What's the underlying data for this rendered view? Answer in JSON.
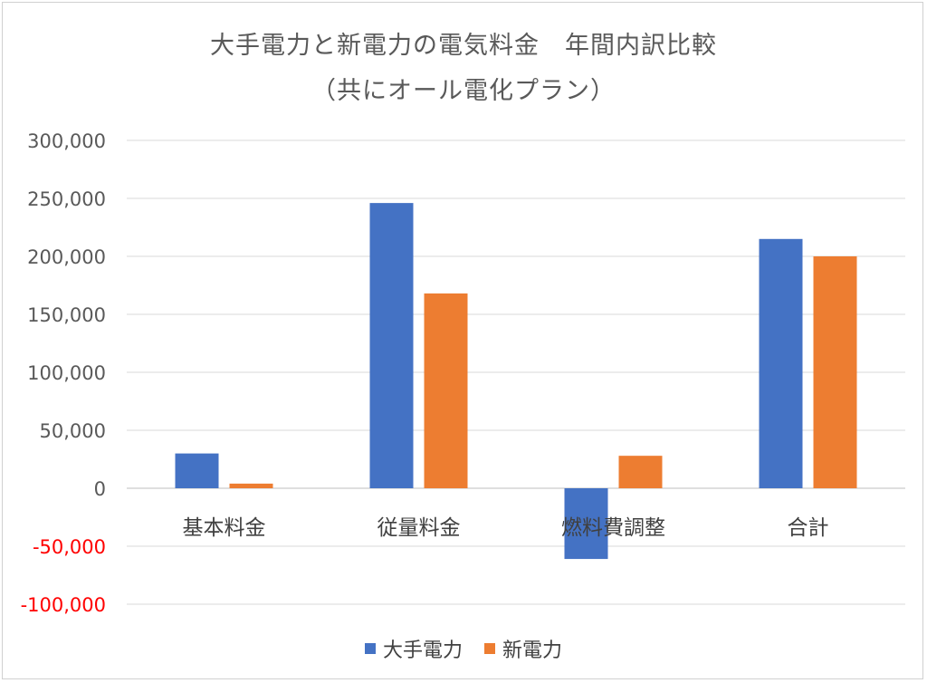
{
  "chart_data": {
    "type": "bar",
    "title": "大手電力と新電力の電気料金　年間内訳比較",
    "subtitle": "（共にオール電化プラン）",
    "categories": [
      "基本料金",
      "従量料金",
      "燃料費調整",
      "合計"
    ],
    "series": [
      {
        "name": "大手電力",
        "color": "#4472C4",
        "values": [
          30000,
          246000,
          -61000,
          215000
        ]
      },
      {
        "name": "新電力",
        "color": "#ED7D31",
        "values": [
          4000,
          168000,
          28000,
          200000
        ]
      }
    ],
    "ylim": [
      -100000,
      300000
    ],
    "yticks": [
      300000,
      250000,
      200000,
      150000,
      100000,
      50000,
      0,
      -50000,
      -100000
    ],
    "ytick_labels": [
      "300,000",
      "250,000",
      "200,000",
      "150,000",
      "100,000",
      "50,000",
      "0",
      "-50,000",
      "-100,000"
    ],
    "negative_tick_color": "#FF0000",
    "tick_color": "#595959",
    "grid": true,
    "legend_position": "bottom"
  }
}
